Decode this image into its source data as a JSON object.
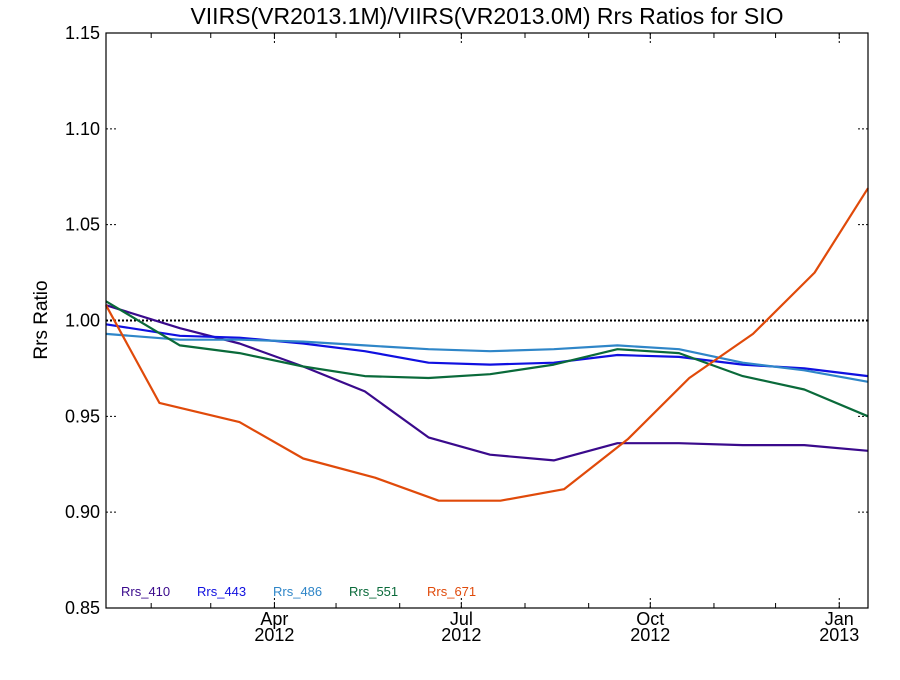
{
  "chart_data": {
    "type": "line",
    "title": "VIIRS(VR2013.1M)/VIIRS(VR2013.0M)  Rrs Ratios for SIO",
    "xlabel": "",
    "ylabel": "Rrs Ratio",
    "ylim": [
      0.85,
      1.15
    ],
    "xlim": [
      "2012-01-10",
      "2013-01-15"
    ],
    "y_ticks": [
      {
        "value": 0.85,
        "label": "0.85"
      },
      {
        "value": 0.9,
        "label": "0.90"
      },
      {
        "value": 0.95,
        "label": "0.95"
      },
      {
        "value": 1.0,
        "label": "1.00"
      },
      {
        "value": 1.05,
        "label": "1.05"
      },
      {
        "value": 1.1,
        "label": "1.10"
      },
      {
        "value": 1.15,
        "label": "1.15"
      }
    ],
    "x_ticks": [
      {
        "value": "2012-04-01",
        "month": "Apr",
        "year": "2012"
      },
      {
        "value": "2012-07-01",
        "month": "Jul",
        "year": "2012"
      },
      {
        "value": "2012-10-01",
        "month": "Oct",
        "year": "2012"
      },
      {
        "value": "2013-01-01",
        "month": "Jan",
        "year": "2013"
      }
    ],
    "reference_line": 1.0,
    "grid": false,
    "legend_position": "bottom-left",
    "series": [
      {
        "name": "Rrs_410",
        "color": "#3a0a8c",
        "points": [
          {
            "x": "2012-01-10",
            "y": 1.008
          },
          {
            "x": "2012-02-15",
            "y": 0.996
          },
          {
            "x": "2012-03-15",
            "y": 0.988
          },
          {
            "x": "2012-04-15",
            "y": 0.976
          },
          {
            "x": "2012-05-15",
            "y": 0.963
          },
          {
            "x": "2012-06-15",
            "y": 0.939
          },
          {
            "x": "2012-07-15",
            "y": 0.93
          },
          {
            "x": "2012-08-15",
            "y": 0.927
          },
          {
            "x": "2012-09-15",
            "y": 0.936
          },
          {
            "x": "2012-10-15",
            "y": 0.936
          },
          {
            "x": "2012-11-15",
            "y": 0.935
          },
          {
            "x": "2012-12-15",
            "y": 0.935
          },
          {
            "x": "2013-01-15",
            "y": 0.932
          }
        ]
      },
      {
        "name": "Rrs_443",
        "color": "#1010e0",
        "points": [
          {
            "x": "2012-01-10",
            "y": 0.998
          },
          {
            "x": "2012-02-15",
            "y": 0.992
          },
          {
            "x": "2012-03-15",
            "y": 0.991
          },
          {
            "x": "2012-04-15",
            "y": 0.988
          },
          {
            "x": "2012-05-15",
            "y": 0.984
          },
          {
            "x": "2012-06-15",
            "y": 0.978
          },
          {
            "x": "2012-07-15",
            "y": 0.977
          },
          {
            "x": "2012-08-15",
            "y": 0.978
          },
          {
            "x": "2012-09-15",
            "y": 0.982
          },
          {
            "x": "2012-10-15",
            "y": 0.981
          },
          {
            "x": "2012-11-15",
            "y": 0.977
          },
          {
            "x": "2012-12-15",
            "y": 0.975
          },
          {
            "x": "2013-01-15",
            "y": 0.971
          }
        ]
      },
      {
        "name": "Rrs_486",
        "color": "#2f86c8",
        "points": [
          {
            "x": "2012-01-10",
            "y": 0.993
          },
          {
            "x": "2012-02-15",
            "y": 0.99
          },
          {
            "x": "2012-03-15",
            "y": 0.99
          },
          {
            "x": "2012-04-15",
            "y": 0.989
          },
          {
            "x": "2012-05-15",
            "y": 0.987
          },
          {
            "x": "2012-06-15",
            "y": 0.985
          },
          {
            "x": "2012-07-15",
            "y": 0.984
          },
          {
            "x": "2012-08-15",
            "y": 0.985
          },
          {
            "x": "2012-09-15",
            "y": 0.987
          },
          {
            "x": "2012-10-15",
            "y": 0.985
          },
          {
            "x": "2012-11-15",
            "y": 0.978
          },
          {
            "x": "2012-12-15",
            "y": 0.974
          },
          {
            "x": "2013-01-15",
            "y": 0.968
          }
        ]
      },
      {
        "name": "Rrs_551",
        "color": "#0a6a3a",
        "points": [
          {
            "x": "2012-01-10",
            "y": 1.01
          },
          {
            "x": "2012-02-15",
            "y": 0.987
          },
          {
            "x": "2012-03-15",
            "y": 0.983
          },
          {
            "x": "2012-04-15",
            "y": 0.976
          },
          {
            "x": "2012-05-15",
            "y": 0.971
          },
          {
            "x": "2012-06-15",
            "y": 0.97
          },
          {
            "x": "2012-07-15",
            "y": 0.972
          },
          {
            "x": "2012-08-15",
            "y": 0.977
          },
          {
            "x": "2012-09-15",
            "y": 0.985
          },
          {
            "x": "2012-10-15",
            "y": 0.983
          },
          {
            "x": "2012-11-15",
            "y": 0.971
          },
          {
            "x": "2012-12-15",
            "y": 0.964
          },
          {
            "x": "2013-01-15",
            "y": 0.95
          }
        ]
      },
      {
        "name": "Rrs_671",
        "color": "#e04a0a",
        "points": [
          {
            "x": "2012-01-10",
            "y": 1.008
          },
          {
            "x": "2012-02-05",
            "y": 0.957
          },
          {
            "x": "2012-03-15",
            "y": 0.947
          },
          {
            "x": "2012-04-15",
            "y": 0.928
          },
          {
            "x": "2012-05-20",
            "y": 0.918
          },
          {
            "x": "2012-06-20",
            "y": 0.906
          },
          {
            "x": "2012-07-20",
            "y": 0.906
          },
          {
            "x": "2012-08-20",
            "y": 0.912
          },
          {
            "x": "2012-09-20",
            "y": 0.938
          },
          {
            "x": "2012-10-20",
            "y": 0.97
          },
          {
            "x": "2012-11-20",
            "y": 0.993
          },
          {
            "x": "2012-12-20",
            "y": 1.025
          },
          {
            "x": "2013-01-15",
            "y": 1.069
          }
        ]
      }
    ]
  }
}
